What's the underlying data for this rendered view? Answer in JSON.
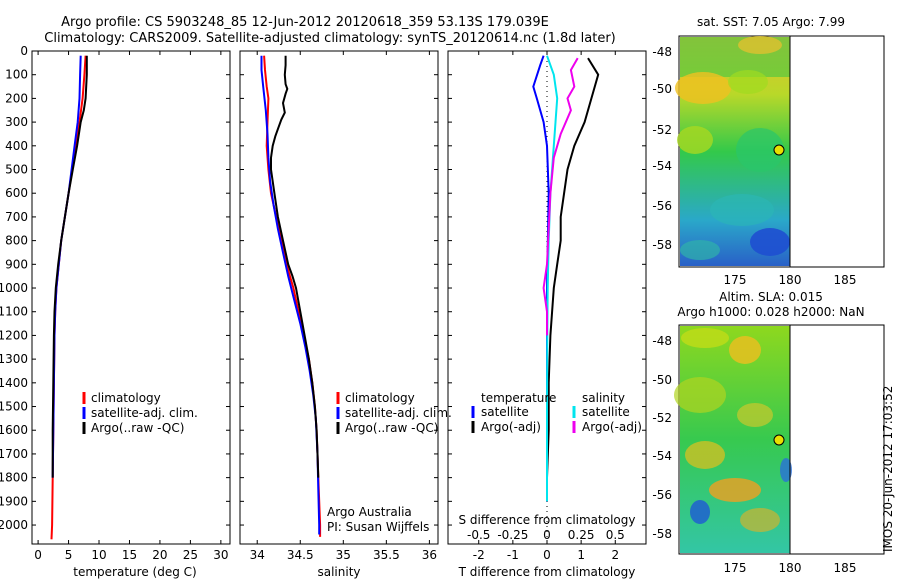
{
  "title": {
    "line1": "Argo profile: CS 5903248_85 12-Jun-2012 20120618_359 53.13S 179.039E",
    "line2": "Climatology: CARS2009. Satellite-adjusted climatology: synTS_20120614.nc (1.8d later)"
  },
  "footer": {
    "org": "Argo Australia",
    "pi": "PI: Susan Wijffels",
    "stamp": "IMOS 20-Jun-2012 17:03:52"
  },
  "colors": {
    "climatology": "#ff0000",
    "satellite": "#0000ff",
    "argo": "#000000",
    "salinity_sat": "#00e5ee",
    "salinity_argo": "#ee00ee"
  },
  "chart_data": [
    {
      "type": "line",
      "name": "temperature",
      "xlabel": "temperature (deg C)",
      "ylabel": "",
      "xlim": [
        -1,
        31.5
      ],
      "ylim": [
        2080,
        0
      ],
      "xticks": [
        0,
        5,
        10,
        15,
        20,
        25,
        30
      ],
      "yticks": [
        0,
        100,
        200,
        300,
        400,
        500,
        600,
        700,
        800,
        900,
        1000,
        1100,
        1200,
        1300,
        1400,
        1500,
        1600,
        1700,
        1800,
        1900,
        2000
      ],
      "legend": [
        "climatology",
        "satellite-adj. clim.",
        "Argo(..raw -QC)"
      ],
      "legend_position": "lower-middle",
      "series": [
        {
          "name": "climatology",
          "color": "#ff0000",
          "points": [
            [
              7.8,
              20
            ],
            [
              7.6,
              100
            ],
            [
              7.3,
              200
            ],
            [
              6.8,
              300
            ],
            [
              6.2,
              400
            ],
            [
              5.6,
              500
            ],
            [
              5.0,
              600
            ],
            [
              4.4,
              700
            ],
            [
              3.8,
              800
            ],
            [
              3.4,
              900
            ],
            [
              3.0,
              1000
            ],
            [
              2.8,
              1100
            ],
            [
              2.7,
              1200
            ],
            [
              2.6,
              1400
            ],
            [
              2.5,
              1600
            ],
            [
              2.4,
              1800
            ],
            [
              2.3,
              2000
            ],
            [
              2.2,
              2060
            ]
          ]
        },
        {
          "name": "satellite-adj. clim.",
          "color": "#0000ff",
          "points": [
            [
              7.0,
              20
            ],
            [
              6.9,
              100
            ],
            [
              6.8,
              200
            ],
            [
              6.5,
              300
            ],
            [
              6.0,
              400
            ],
            [
              5.5,
              500
            ],
            [
              5.0,
              600
            ],
            [
              4.4,
              700
            ],
            [
              3.8,
              800
            ],
            [
              3.4,
              900
            ],
            [
              3.0,
              1000
            ],
            [
              2.8,
              1100
            ],
            [
              2.7,
              1200
            ],
            [
              2.6,
              1400
            ],
            [
              2.5,
              1600
            ],
            [
              2.4,
              1800
            ]
          ]
        },
        {
          "name": "Argo(..raw -QC)",
          "color": "#000000",
          "points": [
            [
              8.0,
              20
            ],
            [
              8.0,
              100
            ],
            [
              7.8,
              200
            ],
            [
              7.5,
              250
            ],
            [
              7.0,
              300
            ],
            [
              6.4,
              400
            ],
            [
              5.7,
              500
            ],
            [
              5.0,
              600
            ],
            [
              4.4,
              700
            ],
            [
              3.8,
              800
            ],
            [
              3.3,
              900
            ],
            [
              2.9,
              1000
            ],
            [
              2.7,
              1100
            ],
            [
              2.6,
              1200
            ],
            [
              2.5,
              1400
            ],
            [
              2.4,
              1600
            ],
            [
              2.4,
              1800
            ]
          ]
        }
      ]
    },
    {
      "type": "line",
      "name": "salinity",
      "xlabel": "salinity",
      "ylabel": "",
      "xlim": [
        33.8,
        36.1
      ],
      "ylim": [
        2080,
        0
      ],
      "xticks": [
        34,
        34.5,
        35,
        35.5,
        36
      ],
      "xticklabels": [
        "34",
        "34.5",
        "35",
        "35.5",
        "36"
      ],
      "legend": [
        "climatology",
        "satellite-adj. clim.",
        "Argo(..raw -QC)"
      ],
      "legend_position": "lower-right",
      "series": [
        {
          "name": "climatology",
          "color": "#ff0000",
          "points": [
            [
              34.08,
              20
            ],
            [
              34.09,
              80
            ],
            [
              34.11,
              150
            ],
            [
              34.13,
              200
            ],
            [
              34.12,
              300
            ],
            [
              34.11,
              400
            ],
            [
              34.13,
              500
            ],
            [
              34.16,
              600
            ],
            [
              34.22,
              700
            ],
            [
              34.28,
              800
            ],
            [
              34.34,
              900
            ],
            [
              34.42,
              1000
            ],
            [
              34.48,
              1100
            ],
            [
              34.54,
              1200
            ],
            [
              34.6,
              1300
            ],
            [
              34.64,
              1400
            ],
            [
              34.67,
              1500
            ],
            [
              34.69,
              1600
            ],
            [
              34.7,
              1700
            ],
            [
              34.71,
              1800
            ],
            [
              34.72,
              1900
            ],
            [
              34.73,
              2000
            ],
            [
              34.73,
              2050
            ]
          ]
        },
        {
          "name": "satellite-adj. clim.",
          "color": "#0000ff",
          "points": [
            [
              34.05,
              20
            ],
            [
              34.05,
              80
            ],
            [
              34.07,
              150
            ],
            [
              34.1,
              250
            ],
            [
              34.12,
              350
            ],
            [
              34.13,
              450
            ],
            [
              34.15,
              550
            ],
            [
              34.19,
              650
            ],
            [
              34.24,
              750
            ],
            [
              34.3,
              850
            ],
            [
              34.36,
              950
            ],
            [
              34.43,
              1050
            ],
            [
              34.5,
              1150
            ],
            [
              34.56,
              1250
            ],
            [
              34.61,
              1350
            ],
            [
              34.65,
              1450
            ],
            [
              34.68,
              1550
            ],
            [
              34.7,
              1700
            ],
            [
              34.71,
              1850
            ],
            [
              34.72,
              2000
            ],
            [
              34.72,
              2040
            ]
          ]
        },
        {
          "name": "Argo(..raw -QC)",
          "color": "#000000",
          "points": [
            [
              34.33,
              20
            ],
            [
              34.33,
              60
            ],
            [
              34.32,
              100
            ],
            [
              34.33,
              140
            ],
            [
              34.35,
              160
            ],
            [
              34.33,
              180
            ],
            [
              34.3,
              220
            ],
            [
              34.32,
              260
            ],
            [
              34.28,
              290
            ],
            [
              34.25,
              320
            ],
            [
              34.21,
              360
            ],
            [
              34.18,
              400
            ],
            [
              34.16,
              450
            ],
            [
              34.16,
              500
            ],
            [
              34.18,
              550
            ],
            [
              34.2,
              600
            ],
            [
              34.24,
              700
            ],
            [
              34.3,
              800
            ],
            [
              34.36,
              900
            ],
            [
              34.41,
              950
            ],
            [
              34.45,
              1000
            ],
            [
              34.5,
              1100
            ],
            [
              34.55,
              1200
            ],
            [
              34.6,
              1300
            ],
            [
              34.64,
              1400
            ],
            [
              34.67,
              1500
            ],
            [
              34.69,
              1600
            ],
            [
              34.7,
              1700
            ],
            [
              34.71,
              1800
            ]
          ]
        }
      ]
    },
    {
      "type": "line",
      "name": "difference",
      "xlabel": "T difference from climatology",
      "xlabel_top": "S difference from climatology",
      "ylabel": "",
      "xlim": [
        -2.9,
        2.9
      ],
      "ylim": [
        2080,
        0
      ],
      "xticks": [
        -2,
        -1,
        0,
        1,
        2
      ],
      "s_xticks": [
        "-0.5",
        "-0.25",
        "0",
        "0.25",
        "0.5"
      ],
      "legend_temperature": {
        "title": "temperature",
        "items": [
          "satellite",
          "Argo(-adj)"
        ]
      },
      "legend_salinity": {
        "title": "salinity",
        "items": [
          "satellite",
          "Argo(-adj)"
        ]
      },
      "legend_position": "lower-middle",
      "series": [
        {
          "name": "temperature satellite",
          "color": "#0000ff",
          "points": [
            [
              -0.1,
              20
            ],
            [
              -0.2,
              60
            ],
            [
              -0.4,
              150
            ],
            [
              -0.3,
              200
            ],
            [
              -0.1,
              300
            ],
            [
              0,
              400
            ],
            [
              0.05,
              600
            ],
            [
              0,
              1000
            ],
            [
              0,
              1500
            ],
            [
              0,
              1900
            ]
          ]
        },
        {
          "name": "temperature Argo(-adj)",
          "color": "#000000",
          "points": [
            [
              1.2,
              30
            ],
            [
              1.5,
              100
            ],
            [
              1.3,
              200
            ],
            [
              1.1,
              300
            ],
            [
              0.8,
              400
            ],
            [
              0.6,
              500
            ],
            [
              0.5,
              600
            ],
            [
              0.4,
              700
            ],
            [
              0.4,
              800
            ],
            [
              0.3,
              900
            ],
            [
              0.2,
              1000
            ],
            [
              0.15,
              1100
            ],
            [
              0.1,
              1200
            ],
            [
              0.05,
              1400
            ],
            [
              0.05,
              1600
            ],
            [
              0,
              1800
            ]
          ]
        },
        {
          "name": "salinity satellite",
          "color": "#00e5ee",
          "points": [
            [
              0,
              20
            ],
            [
              0.2,
              100
            ],
            [
              0.3,
              200
            ],
            [
              0.25,
              300
            ],
            [
              0.2,
              400
            ],
            [
              0.1,
              600
            ],
            [
              0.05,
              800
            ],
            [
              0.02,
              1000
            ],
            [
              0.01,
              1200
            ],
            [
              0,
              1500
            ],
            [
              0,
              1900
            ]
          ]
        },
        {
          "name": "salinity Argo(-adj)",
          "color": "#ee00ee",
          "points": [
            [
              0.9,
              30
            ],
            [
              0.7,
              80
            ],
            [
              0.8,
              150
            ],
            [
              0.6,
              200
            ],
            [
              0.7,
              250
            ],
            [
              0.4,
              350
            ],
            [
              0.2,
              450
            ],
            [
              0.1,
              600
            ],
            [
              0,
              900
            ],
            [
              -0.1,
              1000
            ],
            [
              0,
              1100
            ],
            [
              0,
              1200
            ]
          ]
        }
      ]
    },
    {
      "type": "heatmap",
      "name": "sst-map",
      "title": "sat. SST: 7.05 Argo: 7.99",
      "xticks": [
        "175",
        "180",
        "185"
      ],
      "yticks": [
        "-48",
        "-50",
        "-52",
        "-54",
        "-56",
        "-58"
      ],
      "marker": {
        "lon": 179.0,
        "lat": -53.13
      }
    },
    {
      "type": "heatmap",
      "name": "sla-map",
      "title": "Altim. SLA: 0.015",
      "subtitle": "Argo h1000: 0.028 h2000: NaN",
      "xticks": [
        "175",
        "180",
        "185"
      ],
      "yticks": [
        "-48",
        "-50",
        "-52",
        "-54",
        "-56",
        "-58"
      ],
      "marker": {
        "lon": 179.0,
        "lat": -53.13
      }
    }
  ]
}
